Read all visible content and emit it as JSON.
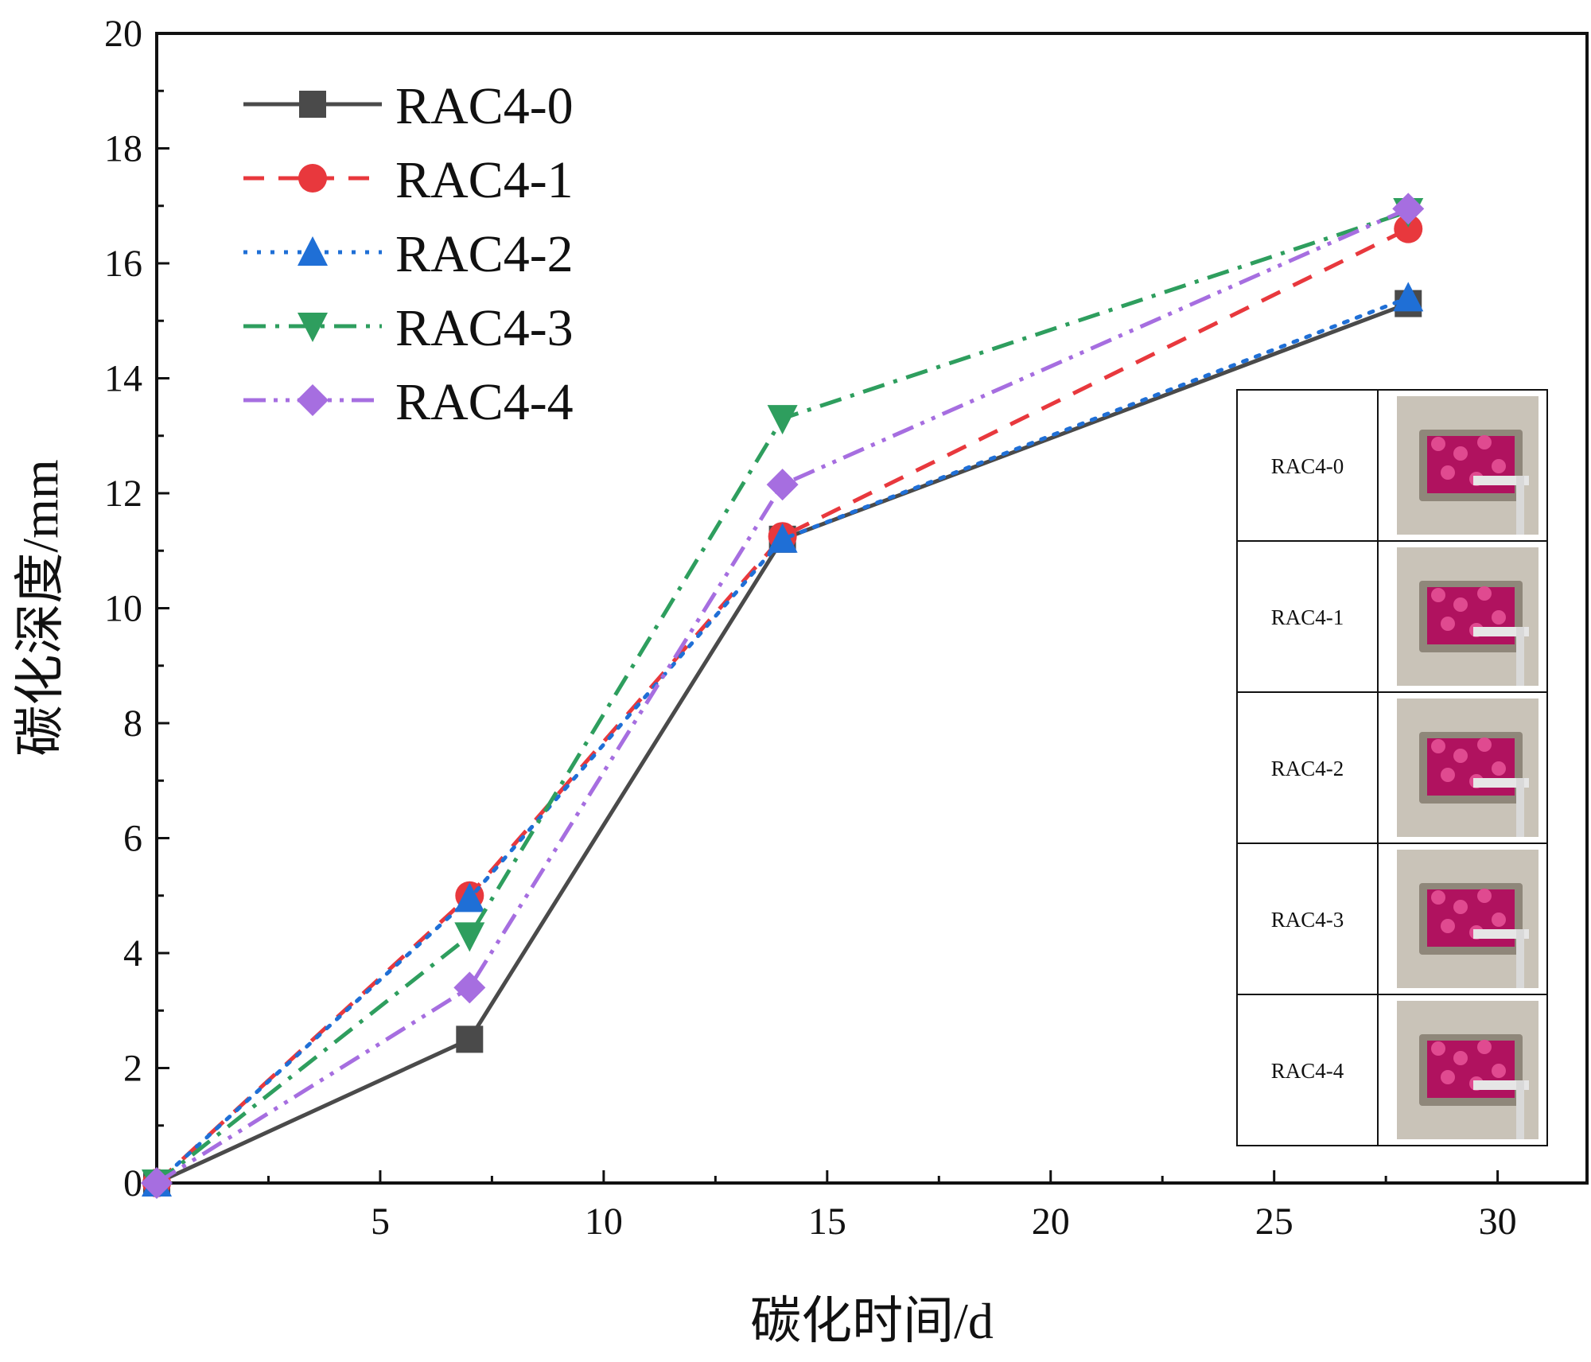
{
  "chart_data": {
    "type": "line",
    "title": "",
    "xlabel": "碳化时间/d",
    "ylabel": "碳化深度/mm",
    "xlim": [
      0,
      32
    ],
    "ylim": [
      0,
      20
    ],
    "xticks": [
      5,
      10,
      15,
      20,
      25,
      30
    ],
    "yticks": [
      0,
      2,
      4,
      6,
      8,
      10,
      12,
      14,
      16,
      18,
      20
    ],
    "grid": false,
    "legend_position": "top-left",
    "x": [
      0,
      7,
      14,
      28
    ],
    "series": [
      {
        "name": "RAC4-0",
        "values": [
          0,
          2.5,
          11.2,
          15.3
        ],
        "color": "#4a4a4a",
        "marker": "square",
        "dash": "solid"
      },
      {
        "name": "RAC4-1",
        "values": [
          0,
          5.0,
          11.25,
          16.6
        ],
        "color": "#e8383d",
        "marker": "circle",
        "dash": "dash"
      },
      {
        "name": "RAC4-2",
        "values": [
          0,
          4.95,
          11.2,
          15.4
        ],
        "color": "#1f6fd6",
        "marker": "triangle-up",
        "dash": "dot"
      },
      {
        "name": "RAC4-3",
        "values": [
          0,
          4.3,
          13.3,
          16.9
        ],
        "color": "#2e9e5e",
        "marker": "triangle-down",
        "dash": "dashdot"
      },
      {
        "name": "RAC4-4",
        "values": [
          0,
          3.4,
          12.15,
          16.95
        ],
        "color": "#a66ee0",
        "marker": "diamond",
        "dash": "dashdotdot"
      }
    ],
    "inset_table": {
      "rows": [
        {
          "label": "RAC4-0",
          "photo": "carbonation-specimen-photo"
        },
        {
          "label": "RAC4-1",
          "photo": "carbonation-specimen-photo"
        },
        {
          "label": "RAC4-2",
          "photo": "carbonation-specimen-photo"
        },
        {
          "label": "RAC4-3",
          "photo": "carbonation-specimen-photo"
        },
        {
          "label": "RAC4-4",
          "photo": "carbonation-specimen-photo"
        }
      ]
    }
  }
}
